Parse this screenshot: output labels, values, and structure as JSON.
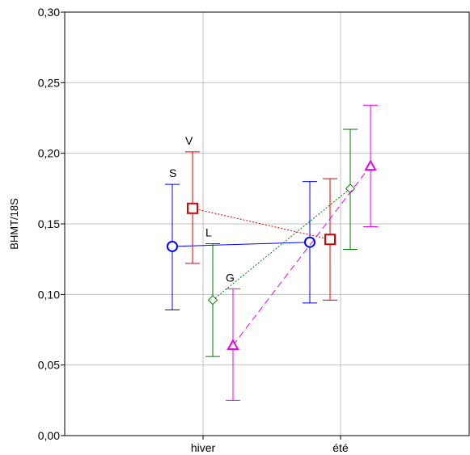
{
  "chart_data": {
    "type": "line",
    "title": "",
    "xlabel": "",
    "ylabel": "BHMT/18S",
    "categories": [
      "hiver",
      "été"
    ],
    "ylim": [
      0,
      0.3
    ],
    "yticks": [
      "0,00",
      "0,05",
      "0,10",
      "0,15",
      "0,20",
      "0,25",
      "0,30"
    ],
    "grid": true,
    "series": [
      {
        "name": "S",
        "color": "#0000ff",
        "marker": "circle",
        "dash": "solid",
        "values": [
          0.134,
          0.137
        ],
        "lower": [
          0.089,
          0.094
        ],
        "upper": [
          0.178,
          0.18
        ]
      },
      {
        "name": "V",
        "color": "#dd0000",
        "marker": "square",
        "dash": "dotted",
        "values": [
          0.161,
          0.139
        ],
        "lower": [
          0.122,
          0.096
        ],
        "upper": [
          0.201,
          0.182
        ]
      },
      {
        "name": "L",
        "color": "#007700",
        "marker": "diamond",
        "dash": "dotted",
        "values": [
          0.096,
          0.175
        ],
        "lower": [
          0.056,
          0.132
        ],
        "upper": [
          0.136,
          0.217
        ]
      },
      {
        "name": "G",
        "color": "#ee00ee",
        "marker": "triangle",
        "dash": "dashed",
        "values": [
          0.064,
          0.191
        ],
        "lower": [
          0.025,
          0.148
        ],
        "upper": [
          0.104,
          0.234
        ]
      }
    ]
  }
}
